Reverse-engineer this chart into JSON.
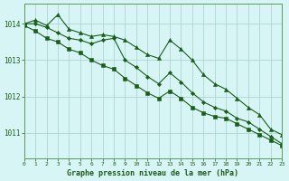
{
  "title": "Graphe pression niveau de la mer (hPa)",
  "bg_color": "#d8f5f5",
  "grid_color": "#aed4d4",
  "line_color": "#1a5c1a",
  "x_min": 0,
  "x_max": 23,
  "y_min": 1010.3,
  "y_max": 1014.55,
  "yticks": [
    1011,
    1012,
    1013,
    1014
  ],
  "series": [
    {
      "data": [
        1014.0,
        1014.1,
        1013.95,
        1014.25,
        1013.85,
        1013.75,
        1013.65,
        1013.7,
        1013.65,
        1013.55,
        1013.35,
        1013.15,
        1013.05,
        1013.55,
        1013.3,
        1013.0,
        1012.6,
        1012.35,
        1012.2,
        1011.95,
        1011.7,
        1011.5,
        1011.1,
        1010.95
      ],
      "marker": "^",
      "markersize": 3.0,
      "lw": 0.8
    },
    {
      "data": [
        1014.0,
        1014.0,
        1013.9,
        1013.75,
        1013.6,
        1013.55,
        1013.45,
        1013.55,
        1013.6,
        1013.0,
        1012.8,
        1012.55,
        1012.35,
        1012.65,
        1012.4,
        1012.1,
        1011.85,
        1011.7,
        1011.6,
        1011.4,
        1011.3,
        1011.1,
        1010.9,
        1010.7
      ],
      "marker": "D",
      "markersize": 2.2,
      "lw": 0.8
    },
    {
      "data": [
        1013.95,
        1013.8,
        1013.6,
        1013.5,
        1013.3,
        1013.2,
        1013.0,
        1012.85,
        1012.75,
        1012.5,
        1012.3,
        1012.1,
        1011.95,
        1012.15,
        1011.95,
        1011.7,
        1011.55,
        1011.45,
        1011.4,
        1011.25,
        1011.1,
        1010.95,
        1010.8,
        1010.65
      ],
      "marker": "s",
      "markersize": 2.2,
      "lw": 0.8
    }
  ]
}
